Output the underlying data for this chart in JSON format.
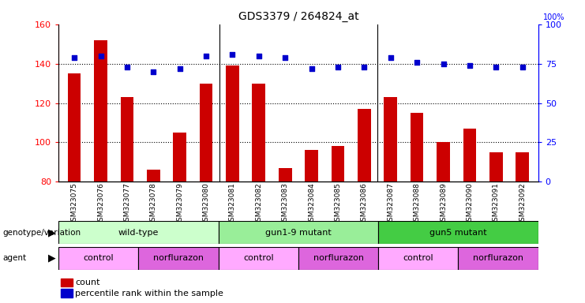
{
  "title": "GDS3379 / 264824_at",
  "samples": [
    "GSM323075",
    "GSM323076",
    "GSM323077",
    "GSM323078",
    "GSM323079",
    "GSM323080",
    "GSM323081",
    "GSM323082",
    "GSM323083",
    "GSM323084",
    "GSM323085",
    "GSM323086",
    "GSM323087",
    "GSM323088",
    "GSM323089",
    "GSM323090",
    "GSM323091",
    "GSM323092"
  ],
  "counts": [
    135,
    152,
    123,
    86,
    105,
    130,
    139,
    130,
    87,
    96,
    98,
    117,
    123,
    115,
    100,
    107,
    95,
    95
  ],
  "percentile_ranks": [
    79,
    80,
    73,
    70,
    72,
    80,
    81,
    80,
    79,
    72,
    73,
    73,
    79,
    76,
    75,
    74,
    73,
    73
  ],
  "ylim_left": [
    80,
    160
  ],
  "ylim_right": [
    0,
    100
  ],
  "yticks_left": [
    80,
    100,
    120,
    140,
    160
  ],
  "yticks_right": [
    0,
    25,
    50,
    75,
    100
  ],
  "bar_color": "#cc0000",
  "dot_color": "#0000cc",
  "genotype_groups": [
    {
      "label": "wild-type",
      "start": 0,
      "end": 6,
      "color": "#ccffcc"
    },
    {
      "label": "gun1-9 mutant",
      "start": 6,
      "end": 12,
      "color": "#99ee99"
    },
    {
      "label": "gun5 mutant",
      "start": 12,
      "end": 18,
      "color": "#44cc44"
    }
  ],
  "agent_groups": [
    {
      "label": "control",
      "start": 0,
      "end": 3,
      "color": "#ffaaff"
    },
    {
      "label": "norflurazon",
      "start": 3,
      "end": 6,
      "color": "#dd66dd"
    },
    {
      "label": "control",
      "start": 6,
      "end": 9,
      "color": "#ffaaff"
    },
    {
      "label": "norflurazon",
      "start": 9,
      "end": 12,
      "color": "#dd66dd"
    },
    {
      "label": "control",
      "start": 12,
      "end": 15,
      "color": "#ffaaff"
    },
    {
      "label": "norflurazon",
      "start": 15,
      "end": 18,
      "color": "#dd66dd"
    }
  ]
}
